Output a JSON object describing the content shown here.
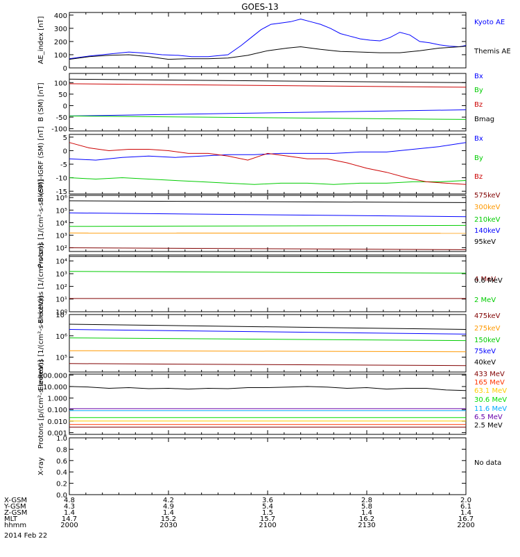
{
  "title": "GOES-13",
  "no_data_text": "No data",
  "date_text": "2014 Feb 22",
  "chart_data": [
    {
      "type": "line",
      "panel": "ae-index",
      "ylabel": "AE_index [nT]",
      "ylim": [
        0,
        420
      ],
      "yticks": [
        {
          "v": 0,
          "t": "0"
        },
        {
          "v": 100,
          "t": "100"
        },
        {
          "v": 200,
          "t": "200"
        },
        {
          "v": 300,
          "t": "300"
        },
        {
          "v": 400,
          "t": "400"
        }
      ],
      "xlim": [
        0,
        120
      ],
      "series": [
        {
          "name": "Kyoto AE",
          "color": "#0000ff",
          "x": [
            0,
            6,
            12,
            18,
            24,
            28,
            33,
            37,
            42,
            48,
            52,
            55,
            58,
            61,
            64,
            67,
            70,
            73,
            76,
            79,
            82,
            85,
            88,
            91,
            94,
            97,
            100,
            103,
            106,
            109,
            112,
            115,
            118,
            120
          ],
          "y": [
            70,
            90,
            105,
            120,
            110,
            100,
            95,
            85,
            85,
            100,
            170,
            230,
            290,
            330,
            340,
            350,
            370,
            350,
            330,
            300,
            260,
            240,
            220,
            210,
            205,
            230,
            270,
            250,
            200,
            190,
            175,
            165,
            160,
            170
          ]
        },
        {
          "name": "Themis AE",
          "color": "#000000",
          "x": [
            0,
            6,
            12,
            18,
            24,
            30,
            36,
            42,
            48,
            54,
            60,
            66,
            70,
            76,
            82,
            88,
            94,
            100,
            106,
            112,
            118,
            120
          ],
          "y": [
            65,
            85,
            95,
            100,
            85,
            65,
            70,
            70,
            75,
            95,
            130,
            150,
            160,
            140,
            125,
            120,
            115,
            115,
            130,
            150,
            160,
            165
          ]
        }
      ]
    },
    {
      "type": "line",
      "panel": "b-sm",
      "ylabel": "B (SM) [nT]",
      "ylim": [
        -110,
        140
      ],
      "yticks": [
        {
          "v": -100,
          "t": "-100"
        },
        {
          "v": -50,
          "t": "-50"
        },
        {
          "v": 0,
          "t": "0"
        },
        {
          "v": 50,
          "t": "50"
        },
        {
          "v": 100,
          "t": "100"
        }
      ],
      "xlim": [
        0,
        120
      ],
      "series": [
        {
          "name": "Bx",
          "color": "#0000ff",
          "x": [
            0,
            120
          ],
          "y": [
            -45,
            -18
          ]
        },
        {
          "name": "By",
          "color": "#00cc00",
          "x": [
            0,
            120
          ],
          "y": [
            -45,
            -60
          ]
        },
        {
          "name": "Bz",
          "color": "#cc0000",
          "x": [
            0,
            120
          ],
          "y": [
            95,
            80
          ]
        },
        {
          "name": "Bmag",
          "color": "#000000",
          "x": [
            0,
            120
          ],
          "y": [
            115,
            100
          ]
        }
      ]
    },
    {
      "type": "line",
      "panel": "b-sm-igrf",
      "ylabel": "B (SM)-IGRF (SM) [nT]",
      "ylim": [
        -16,
        6
      ],
      "yticks": [
        {
          "v": -15,
          "t": "-15"
        },
        {
          "v": -10,
          "t": "-10"
        },
        {
          "v": -5,
          "t": "-5"
        },
        {
          "v": 0,
          "t": "0"
        },
        {
          "v": 5,
          "t": "5"
        }
      ],
      "xlim": [
        0,
        120
      ],
      "series": [
        {
          "name": "Bx",
          "color": "#0000ff",
          "x": [
            0,
            8,
            16,
            24,
            32,
            40,
            48,
            56,
            64,
            72,
            80,
            88,
            96,
            104,
            112,
            120
          ],
          "y": [
            -3,
            -3.5,
            -2.5,
            -2,
            -2.5,
            -2,
            -1.5,
            -1.5,
            -1,
            -1,
            -1,
            -0.5,
            -0.5,
            0.5,
            1.5,
            3
          ]
        },
        {
          "name": "By",
          "color": "#00cc00",
          "x": [
            0,
            8,
            16,
            24,
            32,
            40,
            48,
            56,
            64,
            72,
            80,
            88,
            96,
            104,
            112,
            120
          ],
          "y": [
            -10,
            -10.5,
            -10,
            -10.5,
            -11,
            -11.5,
            -12,
            -12.5,
            -12,
            -12,
            -12.5,
            -12,
            -12,
            -11.5,
            -11.5,
            -11
          ]
        },
        {
          "name": "Bz",
          "color": "#cc0000",
          "x": [
            0,
            6,
            12,
            18,
            24,
            30,
            36,
            42,
            48,
            54,
            60,
            66,
            72,
            78,
            84,
            90,
            96,
            102,
            108,
            114,
            120
          ],
          "y": [
            3,
            1,
            0,
            0.5,
            0.5,
            0,
            -1,
            -1,
            -2,
            -3.5,
            -1,
            -2,
            -3,
            -3,
            -4.5,
            -6.5,
            -8,
            -10,
            -11.5,
            -12,
            -12.5
          ]
        }
      ]
    },
    {
      "type": "line",
      "panel": "protons-low",
      "ylabel": "Protons [1/(cm²-s-sr-keV)]",
      "log": true,
      "ylim": [
        50,
        1500000
      ],
      "yticks": [
        {
          "v": 100,
          "t": "10²"
        },
        {
          "v": 1000,
          "t": "10³"
        },
        {
          "v": 10000,
          "t": "10⁴"
        },
        {
          "v": 100000,
          "t": "10⁵"
        },
        {
          "v": 1000000,
          "t": "10⁶"
        }
      ],
      "xlim": [
        0,
        120
      ],
      "series": [
        {
          "name": "575keV",
          "color": "#800000",
          "x": [
            0,
            120
          ],
          "y": [
            100,
            70
          ]
        },
        {
          "name": "300keV",
          "color": "#ff9900",
          "x": [
            0,
            120
          ],
          "y": [
            1500,
            1400
          ]
        },
        {
          "name": "210keV",
          "color": "#00cc00",
          "x": [
            0,
            120
          ],
          "y": [
            5000,
            6000
          ]
        },
        {
          "name": "140keV",
          "color": "#0000ff",
          "x": [
            0,
            120
          ],
          "y": [
            60000,
            30000
          ]
        },
        {
          "name": "95keV",
          "color": "#000000",
          "x": [
            0,
            120
          ],
          "y": [
            550000,
            400000
          ]
        }
      ]
    },
    {
      "type": "line",
      "panel": "electrons-high",
      "ylabel": "Electrons [1/(cm²-s-sr)]",
      "log": true,
      "ylim": [
        1,
        30000
      ],
      "yticks": [
        {
          "v": 1,
          "t": "10⁰"
        },
        {
          "v": 10,
          "t": "10¹"
        },
        {
          "v": 100,
          "t": "10²"
        },
        {
          "v": 1000,
          "t": "10³"
        },
        {
          "v": 10000,
          "t": "10⁴"
        }
      ],
      "xlim": [
        0,
        120
      ],
      "series": [
        {
          "name": "4 MeV",
          "color": "#800000",
          "x": [
            0,
            120
          ],
          "y": [
            11,
            11
          ]
        },
        {
          "name": "2 MeV",
          "color": "#00cc00",
          "x": [
            0,
            120
          ],
          "y": [
            1500,
            1100
          ]
        },
        {
          "name": "0.6 MeV",
          "color": "#000000",
          "x": [
            0,
            120
          ],
          "y": [
            23000,
            23000
          ]
        }
      ]
    },
    {
      "type": "line",
      "panel": "electrons-low",
      "ylabel": "Electrons [1/(cm²-s-sr-keV)]",
      "log": true,
      "ylim": [
        20000,
        10000000
      ],
      "yticks": [
        {
          "v": 100000,
          "t": "10⁵"
        },
        {
          "v": 1000000,
          "t": "10⁶"
        },
        {
          "v": 10000000,
          "t": "10⁷"
        }
      ],
      "xlim": [
        0,
        120
      ],
      "series": [
        {
          "name": "475keV",
          "color": "#800000",
          "x": [
            0,
            120
          ],
          "y": [
            50000,
            40000
          ]
        },
        {
          "name": "275keV",
          "color": "#ff9900",
          "x": [
            0,
            120
          ],
          "y": [
            200000,
            180000
          ]
        },
        {
          "name": "150keV",
          "color": "#00cc00",
          "x": [
            0,
            120
          ],
          "y": [
            800000,
            600000
          ]
        },
        {
          "name": "75keV",
          "color": "#0000ff",
          "x": [
            0,
            120
          ],
          "y": [
            2000000,
            1200000
          ]
        },
        {
          "name": "40keV",
          "color": "#000000",
          "x": [
            0,
            120
          ],
          "y": [
            3500000,
            2000000
          ]
        }
      ]
    },
    {
      "type": "line",
      "panel": "protons-high",
      "ylabel": "Protons [p/(cm²-s-sr-keV)]",
      "log": true,
      "ylim": [
        0.0007,
        120
      ],
      "yticks": [
        {
          "v": 0.001,
          "t": "0.001"
        },
        {
          "v": 0.01,
          "t": "0.010"
        },
        {
          "v": 0.1,
          "t": "0.100"
        },
        {
          "v": 1,
          "t": "1.000"
        },
        {
          "v": 10,
          "t": "10.000"
        },
        {
          "v": 100,
          "t": "100.000"
        }
      ],
      "xlim": [
        0,
        120
      ],
      "series": [
        {
          "name": "433 MeV",
          "color": "#800000",
          "x": [
            0,
            120
          ],
          "y": [
            0.003,
            0.003
          ]
        },
        {
          "name": "165 MeV",
          "color": "#ff3300",
          "x": [
            0,
            120
          ],
          "y": [
            0.005,
            0.005
          ]
        },
        {
          "name": "63.1 MeV",
          "color": "#ffcc00",
          "x": [
            0,
            120
          ],
          "y": [
            0.01,
            0.01
          ]
        },
        {
          "name": "30.6 MeV",
          "color": "#00dd00",
          "x": [
            0,
            120
          ],
          "y": [
            0.02,
            0.02
          ]
        },
        {
          "name": "11.6 MeV",
          "color": "#00aaff",
          "x": [
            0,
            120
          ],
          "y": [
            0.08,
            0.08
          ]
        },
        {
          "name": "6.5 MeV",
          "color": "#6600aa",
          "x": [
            0,
            120
          ],
          "y": [
            0.12,
            0.12
          ]
        },
        {
          "name": "2.5 MeV",
          "color": "#000000",
          "x": [
            0,
            6,
            12,
            18,
            24,
            30,
            36,
            42,
            48,
            54,
            60,
            66,
            72,
            78,
            84,
            90,
            96,
            102,
            108,
            114,
            120
          ],
          "y": [
            10,
            9,
            7,
            8,
            6.5,
            7,
            6,
            7,
            6.5,
            8,
            8,
            9,
            10,
            9,
            7,
            8,
            6,
            7,
            7,
            5,
            4.5
          ]
        }
      ]
    },
    {
      "type": "line",
      "panel": "x-ray",
      "ylabel": "X-ray",
      "ylim": [
        0,
        1
      ],
      "yticks": [
        {
          "v": 0,
          "t": "0.0"
        },
        {
          "v": 0.2,
          "t": "0.2"
        },
        {
          "v": 0.4,
          "t": "0.4"
        },
        {
          "v": 0.6,
          "t": "0.6"
        },
        {
          "v": 0.8,
          "t": "0.8"
        },
        {
          "v": 1,
          "t": "1.0"
        }
      ],
      "xlim": [
        0,
        120
      ],
      "series": []
    }
  ],
  "ephemeris": {
    "labels": [
      "X-GSM",
      "Y-GSM",
      "Z-GSM",
      "MLT",
      "hhmm"
    ],
    "columns": [
      {
        "x": 0,
        "values": [
          "4.8",
          "4.3",
          "1.4",
          "14.7",
          "2000"
        ]
      },
      {
        "x": 30,
        "values": [
          "4.2",
          "4.9",
          "1.4",
          "15.2",
          "2030"
        ]
      },
      {
        "x": 60,
        "values": [
          "3.6",
          "5.4",
          "1.5",
          "15.7",
          "2100"
        ]
      },
      {
        "x": 90,
        "values": [
          "2.8",
          "5.8",
          "1.4",
          "16.2",
          "2130"
        ]
      },
      {
        "x": 120,
        "values": [
          "2.0",
          "6.1",
          "1.4",
          "16.7",
          "2200"
        ]
      }
    ]
  }
}
